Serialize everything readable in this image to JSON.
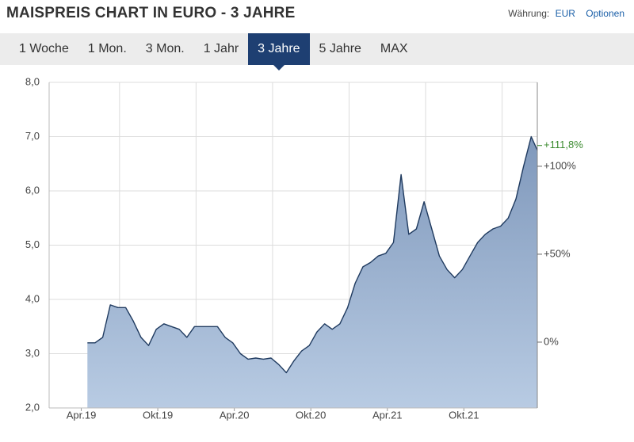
{
  "header": {
    "title": "MAISPREIS CHART IN EURO - 3 JAHRE",
    "currency_label": "Währung:",
    "currency": "EUR",
    "options": "Optionen"
  },
  "tabs": [
    "1 Woche",
    "1 Mon.",
    "3 Mon.",
    "1 Jahr",
    "3 Jahre",
    "5 Jahre",
    "MAX"
  ],
  "active_tab": 4,
  "chart_data": {
    "type": "area",
    "x": [
      2019.29,
      2019.34,
      2019.39,
      2019.44,
      2019.49,
      2019.54,
      2019.59,
      2019.64,
      2019.69,
      2019.74,
      2019.79,
      2019.84,
      2019.89,
      2019.94,
      2019.99,
      2020.04,
      2020.09,
      2020.14,
      2020.19,
      2020.24,
      2020.29,
      2020.34,
      2020.39,
      2020.44,
      2020.49,
      2020.54,
      2020.59,
      2020.64,
      2020.69,
      2020.74,
      2020.79,
      2020.84,
      2020.89,
      2020.94,
      2020.99,
      2021.04,
      2021.09,
      2021.14,
      2021.19,
      2021.24,
      2021.29,
      2021.34,
      2021.39,
      2021.44,
      2021.49,
      2021.54,
      2021.59,
      2021.64,
      2021.69,
      2021.74,
      2021.79,
      2021.84,
      2021.89,
      2021.94,
      2021.99,
      2022.04,
      2022.09,
      2022.14,
      2022.19,
      2022.23
    ],
    "values": [
      3.2,
      3.2,
      3.3,
      3.9,
      3.85,
      3.85,
      3.6,
      3.3,
      3.15,
      3.45,
      3.55,
      3.5,
      3.45,
      3.3,
      3.5,
      3.5,
      3.5,
      3.5,
      3.3,
      3.2,
      3.0,
      2.9,
      2.92,
      2.9,
      2.92,
      2.8,
      2.65,
      2.87,
      3.05,
      3.15,
      3.4,
      3.55,
      3.45,
      3.55,
      3.85,
      4.3,
      4.6,
      4.68,
      4.8,
      4.85,
      5.05,
      6.3,
      5.2,
      5.3,
      5.8,
      5.3,
      4.8,
      4.55,
      4.4,
      4.55,
      4.8,
      5.05,
      5.2,
      5.3,
      5.35,
      5.5,
      5.85,
      6.45,
      7.0,
      6.75
    ],
    "color": "#1f3a5f",
    "fill_color": "#9fb4d0",
    "xlim": [
      2019.04,
      2022.23
    ],
    "xticks": [
      {
        "value": 2019.25,
        "label": "Apr.19"
      },
      {
        "value": 2019.75,
        "label": "Okt.19"
      },
      {
        "value": 2020.25,
        "label": "Apr.20"
      },
      {
        "value": 2020.75,
        "label": "Okt.20"
      },
      {
        "value": 2021.25,
        "label": "Apr.21"
      },
      {
        "value": 2021.75,
        "label": "Okt.21"
      }
    ],
    "ylim": [
      2,
      8
    ],
    "yticks": [
      {
        "value": 2,
        "label": "2,0"
      },
      {
        "value": 3,
        "label": "3,0"
      },
      {
        "value": 4,
        "label": "4,0"
      },
      {
        "value": 5,
        "label": "5,0"
      },
      {
        "value": 6,
        "label": "6,0"
      },
      {
        "value": 7,
        "label": "7,0"
      },
      {
        "value": 8,
        "label": "8,0"
      }
    ],
    "y2lim": [
      -37.4,
      147.7
    ],
    "y2ticks": [
      {
        "value": 0,
        "label": "0%"
      },
      {
        "value": 50,
        "label": "+50%"
      },
      {
        "value": 100,
        "label": "+100%"
      }
    ],
    "annotation": {
      "text": "+111,8%",
      "value": 111.8,
      "color": "#3a8a2e"
    },
    "grid": true
  }
}
